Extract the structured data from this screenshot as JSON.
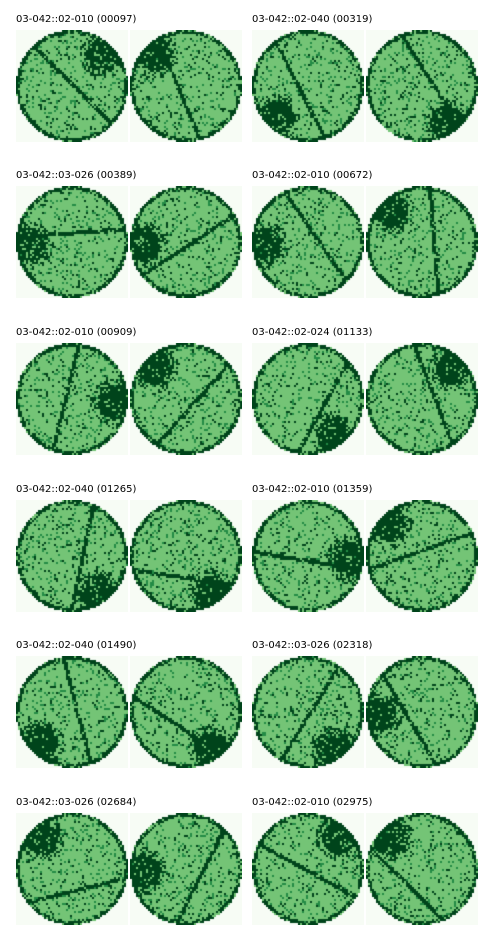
{
  "panels": [
    {
      "title": "03-042::02-010 (00097)",
      "left": {
        "patch": "top-right",
        "seed": 97
      },
      "right": {
        "patch": "top-left",
        "seed": 1097
      }
    },
    {
      "title": "03-042::02-040 (00319)",
      "left": {
        "patch": "bottom-left",
        "seed": 319
      },
      "right": {
        "patch": "bottom-right",
        "seed": 1319
      }
    },
    {
      "title": "03-042::03-026 (00389)",
      "left": {
        "patch": "left",
        "seed": 389
      },
      "right": {
        "patch": "left",
        "seed": 1389
      }
    },
    {
      "title": "03-042::02-010 (00672)",
      "left": {
        "patch": "left",
        "seed": 672
      },
      "right": {
        "patch": "top-left",
        "seed": 1672
      }
    },
    {
      "title": "03-042::02-010 (00909)",
      "left": {
        "patch": "right",
        "seed": 909
      },
      "right": {
        "patch": "top-left",
        "seed": 1909
      }
    },
    {
      "title": "03-042::02-024 (01133)",
      "left": {
        "patch": "bottom-right",
        "seed": 1133
      },
      "right": {
        "patch": "top-right",
        "seed": 2133
      }
    },
    {
      "title": "03-042::02-040 (01265)",
      "left": {
        "patch": "bottom-right",
        "seed": 1265
      },
      "right": {
        "patch": "bottom-right",
        "seed": 2265
      }
    },
    {
      "title": "03-042::02-010 (01359)",
      "left": {
        "patch": "right",
        "seed": 1359
      },
      "right": {
        "patch": "top-left",
        "seed": 2359
      }
    },
    {
      "title": "03-042::02-040 (01490)",
      "left": {
        "patch": "bottom-left",
        "seed": 1490
      },
      "right": {
        "patch": "bottom-right",
        "seed": 2490
      }
    },
    {
      "title": "03-042::03-026 (02318)",
      "left": {
        "patch": "bottom-right",
        "seed": 2318
      },
      "right": {
        "patch": "left",
        "seed": 3318
      }
    },
    {
      "title": "03-042::03-026 (02684)",
      "left": {
        "patch": "top-left",
        "seed": 2684
      },
      "right": {
        "patch": "left",
        "seed": 3684
      }
    },
    {
      "title": "03-042::02-010 (02975)",
      "left": {
        "patch": "top-right",
        "seed": 2975
      },
      "right": {
        "patch": "top-left",
        "seed": 3975
      }
    }
  ],
  "colors": {
    "background": "#f7fcf5",
    "fill": "#74c476",
    "dark": "#00441b",
    "medium": "#238b45"
  }
}
